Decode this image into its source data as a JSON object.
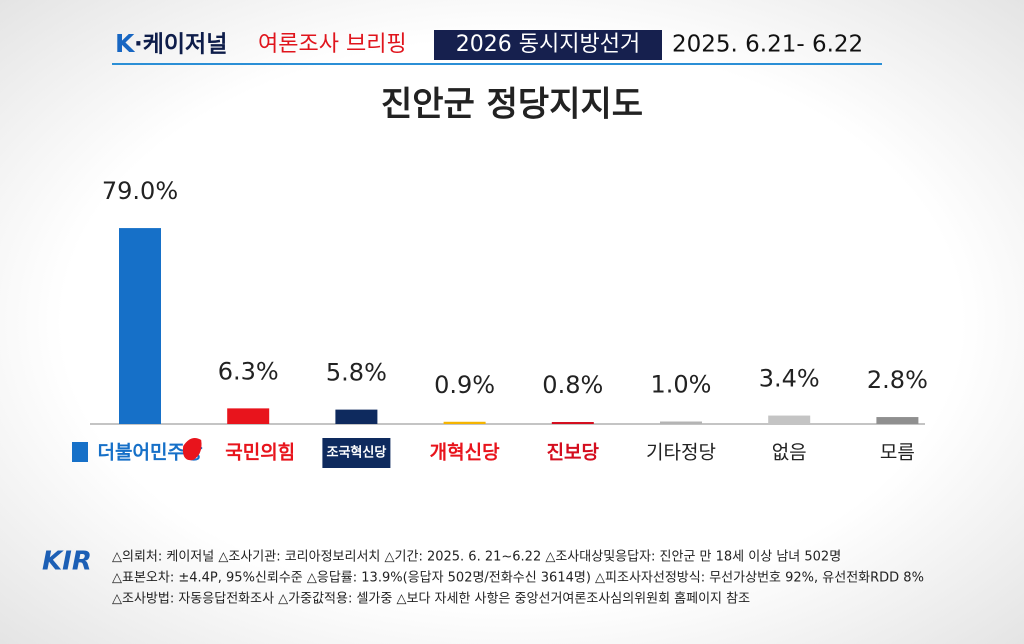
{
  "header": {
    "brand_k": "K",
    "brand_name": "·케이저널",
    "program": "여론조사 브리핑",
    "election": "2026 동시지방선거",
    "period": "2025. 6.21- 6.22"
  },
  "chart_data": {
    "type": "bar",
    "title": "진안군 정당지지도",
    "categories": [
      "더불어민주당",
      "국민의힘",
      "조국혁신당",
      "개혁신당",
      "진보당",
      "기타정당",
      "없음",
      "모름"
    ],
    "values": [
      79.0,
      6.3,
      5.8,
      0.9,
      0.8,
      1.0,
      3.4,
      2.8
    ],
    "value_labels": [
      "79.0%",
      "6.3%",
      "5.8%",
      "0.9%",
      "0.8%",
      "1.0%",
      "3.4%",
      "2.8%"
    ],
    "colors": [
      "#1670c8",
      "#e8141c",
      "#0e2a5e",
      "#f5b400",
      "#d40d1e",
      "#b4b4b4",
      "#c4c4c4",
      "#8f8f8f"
    ]
  },
  "footer": {
    "logo": "KIR",
    "notes": [
      "△의뢰처: 케이저널 △조사기관: 코리아정보리서치 △기간: 2025. 6. 21~6.22 △조사대상및응답자: 진안군 만 18세 이상 남녀 502명",
      "△표본오차: ±4.4P, 95%신뢰수준 △응답률: 13.9%(응답자 502명/전화수신 3614명) △피조사자선정방식: 무선가상번호 92%, 유선전화RDD 8%",
      "△조사방법: 자동응답전화조사 △가중값적용: 셀가중 △보다 자세한 사항은 중앙선거여론조사심의위원회 홈페이지 참조"
    ]
  }
}
